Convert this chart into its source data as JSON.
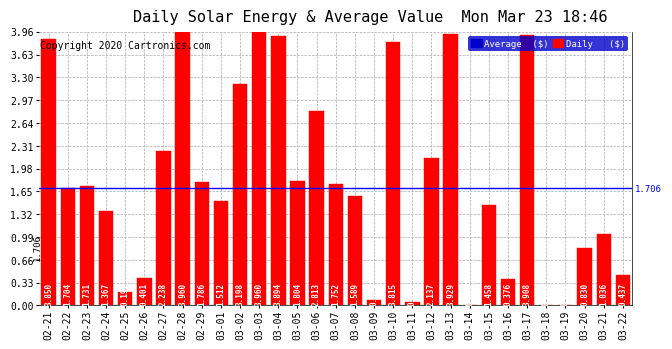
{
  "title": "Daily Solar Energy & Average Value  Mon Mar 23 18:46",
  "copyright": "Copyright 2020 Cartronics.com",
  "categories": [
    "02-21",
    "02-22",
    "02-23",
    "02-24",
    "02-25",
    "02-26",
    "02-27",
    "02-28",
    "02-29",
    "03-01",
    "03-02",
    "03-03",
    "03-04",
    "03-05",
    "03-06",
    "03-07",
    "03-08",
    "03-09",
    "03-10",
    "03-11",
    "03-12",
    "03-13",
    "03-14",
    "03-15",
    "03-16",
    "03-17",
    "03-18",
    "03-19",
    "03-20",
    "03-21",
    "03-22"
  ],
  "values": [
    3.85,
    1.704,
    1.731,
    1.367,
    0.191,
    0.401,
    2.238,
    3.96,
    1.786,
    1.512,
    3.198,
    3.96,
    3.894,
    1.804,
    2.813,
    1.752,
    1.589,
    0.075,
    3.815,
    0.049,
    2.137,
    3.929,
    0.0,
    1.458,
    0.376,
    3.908,
    0.0,
    0.0,
    0.83,
    1.036,
    0.437
  ],
  "average_line": 1.706,
  "bar_color": "#ff0000",
  "avg_line_color": "#0000ff",
  "background_color": "#ffffff",
  "grid_color": "#aaaaaa",
  "ylim": [
    0.0,
    3.96
  ],
  "yticks": [
    0.0,
    0.33,
    0.66,
    0.99,
    1.32,
    1.65,
    1.98,
    2.31,
    2.64,
    2.97,
    3.3,
    3.63,
    3.96
  ],
  "title_fontsize": 11,
  "copyright_fontsize": 7,
  "bar_label_fontsize": 5.5,
  "tick_fontsize": 7,
  "avg_label": "1.706",
  "legend_avg_color": "#0000cc",
  "legend_avg_label": "Average  ($)",
  "legend_daily_label": "Daily   ($)"
}
